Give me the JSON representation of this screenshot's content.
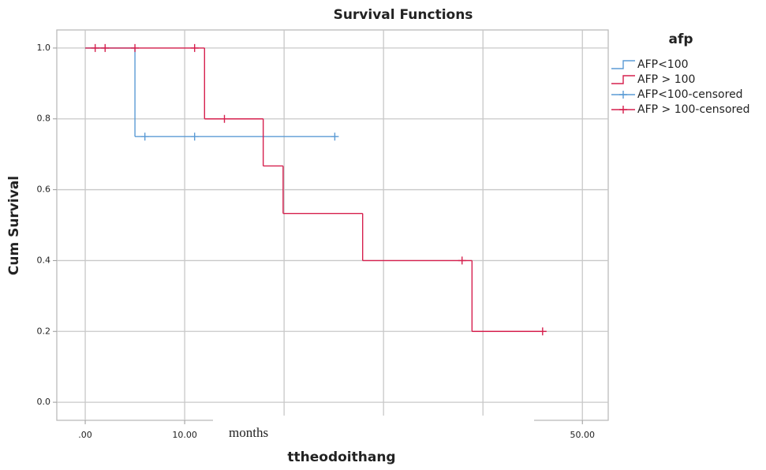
{
  "chart_data": {
    "type": "step",
    "title": "Survival Functions",
    "x_label": "ttheodoithang",
    "y_label": "Cum Survival",
    "legend_title": "afp",
    "legend": "right",
    "annotation": "months",
    "xlim": [
      -2.86,
      52.6
    ],
    "ylim": [
      -0.051,
      1.051
    ],
    "xticks": [
      {
        "value": 0,
        "label": ".00"
      },
      {
        "value": 10,
        "label": "10.00"
      },
      {
        "value": 20,
        "label": null
      },
      {
        "value": 30,
        "label": null
      },
      {
        "value": 40,
        "label": null
      },
      {
        "value": 50,
        "label": "50.00"
      }
    ],
    "yticks": [
      {
        "value": 0,
        "label": "0.0"
      },
      0.2,
      0.4,
      0.6,
      0.8,
      {
        "value": 1,
        "label": "1.0"
      }
    ],
    "grid": true,
    "series": [
      {
        "name": "AFP<100",
        "color": "#5b9bd5",
        "kind": "step",
        "x": [
          0,
          5,
          25.3
        ],
        "values": [
          1,
          0.75,
          0.75
        ]
      },
      {
        "name": "AFP > 100",
        "color": "#d6204e",
        "kind": "step",
        "x": [
          0,
          12,
          17.9,
          19.9,
          27.9,
          38.9,
          46
        ],
        "values": [
          1,
          0.8,
          0.667,
          0.533,
          0.4,
          0.2,
          0.2
        ]
      },
      {
        "name": "AFP<100-censored",
        "color": "#5b9bd5",
        "kind": "censored",
        "x": [
          6,
          11,
          25.1
        ],
        "values": [
          0.75,
          0.75,
          0.75
        ]
      },
      {
        "name": "AFP > 100-censored",
        "color": "#d6204e",
        "kind": "censored",
        "x": [
          1,
          2,
          5,
          11,
          14,
          37.9,
          46
        ],
        "values": [
          1,
          1,
          1,
          1,
          0.8,
          0.4,
          0.2
        ]
      }
    ]
  }
}
